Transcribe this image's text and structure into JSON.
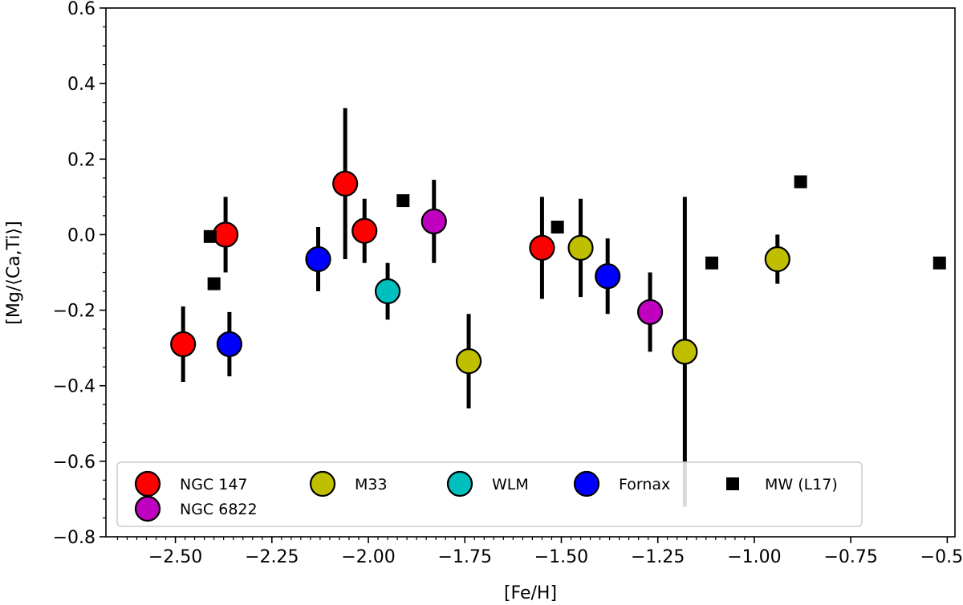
{
  "chart_data": {
    "type": "scatter",
    "xlabel": "[Fe/H]",
    "ylabel": "[Mg/⟨Ca,Ti⟩]",
    "xlim": [
      -2.68,
      -0.48
    ],
    "ylim": [
      -0.8,
      0.6
    ],
    "xticks": [
      -2.5,
      -2.25,
      -2.0,
      -1.75,
      -1.5,
      -1.25,
      -1.0,
      -0.75,
      -0.5
    ],
    "xtick_labels": [
      "−2.50",
      "−2.25",
      "−2.00",
      "−1.75",
      "−1.50",
      "−1.25",
      "−1.00",
      "−0.75",
      "−0.50"
    ],
    "yticks": [
      -0.8,
      -0.6,
      -0.4,
      -0.2,
      0.0,
      0.2,
      0.4,
      0.6
    ],
    "ytick_labels": [
      "−0.8",
      "−0.6",
      "−0.4",
      "−0.2",
      "0.0",
      "0.2",
      "0.4",
      "0.6"
    ],
    "legend_position": "lower-left",
    "series": [
      {
        "name": "NGC 147",
        "marker": "circle",
        "color": "#ff0000",
        "points": [
          {
            "x": -2.48,
            "y": -0.29,
            "err": 0.1
          },
          {
            "x": -2.37,
            "y": 0.0,
            "err": 0.1
          },
          {
            "x": -2.06,
            "y": 0.135,
            "err": 0.2
          },
          {
            "x": -2.01,
            "y": 0.01,
            "err": 0.085
          },
          {
            "x": -1.55,
            "y": -0.035,
            "err": 0.135
          }
        ]
      },
      {
        "name": "M33",
        "marker": "circle",
        "color": "#bfbf00",
        "points": [
          {
            "x": -1.74,
            "y": -0.335,
            "err": 0.125
          },
          {
            "x": -1.45,
            "y": -0.035,
            "err": 0.13
          },
          {
            "x": -1.18,
            "y": -0.31,
            "err": 0.41
          },
          {
            "x": -0.94,
            "y": -0.065,
            "err": 0.065
          }
        ]
      },
      {
        "name": "WLM",
        "marker": "circle",
        "color": "#00bfbf",
        "points": [
          {
            "x": -1.95,
            "y": -0.15,
            "err": 0.075
          }
        ]
      },
      {
        "name": "Fornax",
        "marker": "circle",
        "color": "#0000ff",
        "points": [
          {
            "x": -2.36,
            "y": -0.29,
            "err": 0.085
          },
          {
            "x": -2.13,
            "y": -0.065,
            "err": 0.085
          },
          {
            "x": -1.38,
            "y": -0.11,
            "err": 0.1
          }
        ]
      },
      {
        "name": "MW (L17)",
        "marker": "square",
        "color": "#000000",
        "points": [
          {
            "x": -2.41,
            "y": -0.005
          },
          {
            "x": -2.4,
            "y": -0.13
          },
          {
            "x": -1.91,
            "y": 0.09
          },
          {
            "x": -1.51,
            "y": 0.02
          },
          {
            "x": -1.11,
            "y": -0.075
          },
          {
            "x": -0.88,
            "y": 0.14
          },
          {
            "x": -0.52,
            "y": -0.075
          }
        ]
      },
      {
        "name": "NGC 6822",
        "marker": "circle",
        "color": "#bf00bf",
        "points": [
          {
            "x": -1.83,
            "y": 0.035,
            "err": 0.11
          },
          {
            "x": -1.27,
            "y": -0.205,
            "err": 0.105
          }
        ]
      }
    ]
  }
}
